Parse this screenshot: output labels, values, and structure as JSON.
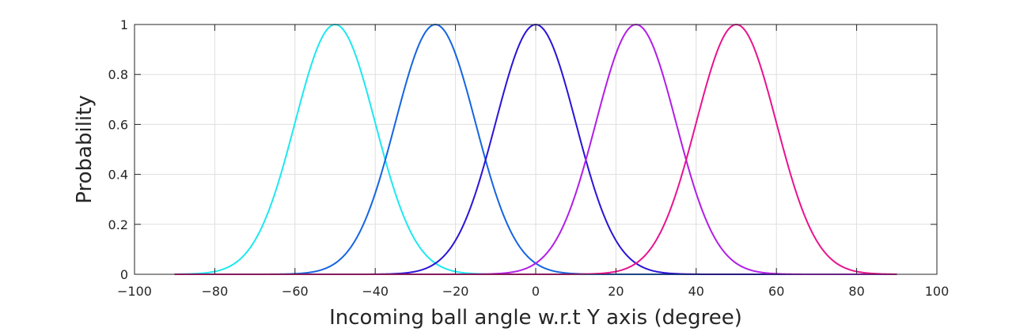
{
  "chart_data": {
    "type": "line",
    "title": "",
    "xlabel": "Incoming ball angle w.r.t Y axis (degree)",
    "ylabel": "Probability",
    "xlim": [
      -100,
      100
    ],
    "ylim": [
      0,
      1
    ],
    "x_ticks": [
      -100,
      -80,
      -60,
      -40,
      -20,
      0,
      20,
      40,
      60,
      80,
      100
    ],
    "y_ticks": [
      0,
      0.2,
      0.4,
      0.6,
      0.8,
      1
    ],
    "x_tick_labels": [
      "−100",
      "−80",
      "−60",
      "−40",
      "−20",
      "0",
      "20",
      "40",
      "60",
      "80",
      "100"
    ],
    "y_tick_labels": [
      "0",
      "0.2",
      "0.4",
      "0.6",
      "0.8",
      "1"
    ],
    "grid": true,
    "legend": "none",
    "curve_shape": "gaussian",
    "x_range": [
      -90,
      90
    ],
    "series": [
      {
        "mean": -50,
        "std": 10,
        "peak": 1,
        "color": "#1ee8f0"
      },
      {
        "mean": -25,
        "std": 10,
        "peak": 1,
        "color": "#1565e0"
      },
      {
        "mean": 0,
        "std": 10,
        "peak": 1,
        "color": "#2a14d6"
      },
      {
        "mean": 25,
        "std": 10,
        "peak": 1,
        "color": "#b21ee6"
      },
      {
        "mean": 50,
        "std": 10,
        "peak": 1,
        "color": "#e8138f"
      }
    ],
    "colors": {
      "axis": "#262626",
      "grid": "#dfdfdf"
    }
  }
}
